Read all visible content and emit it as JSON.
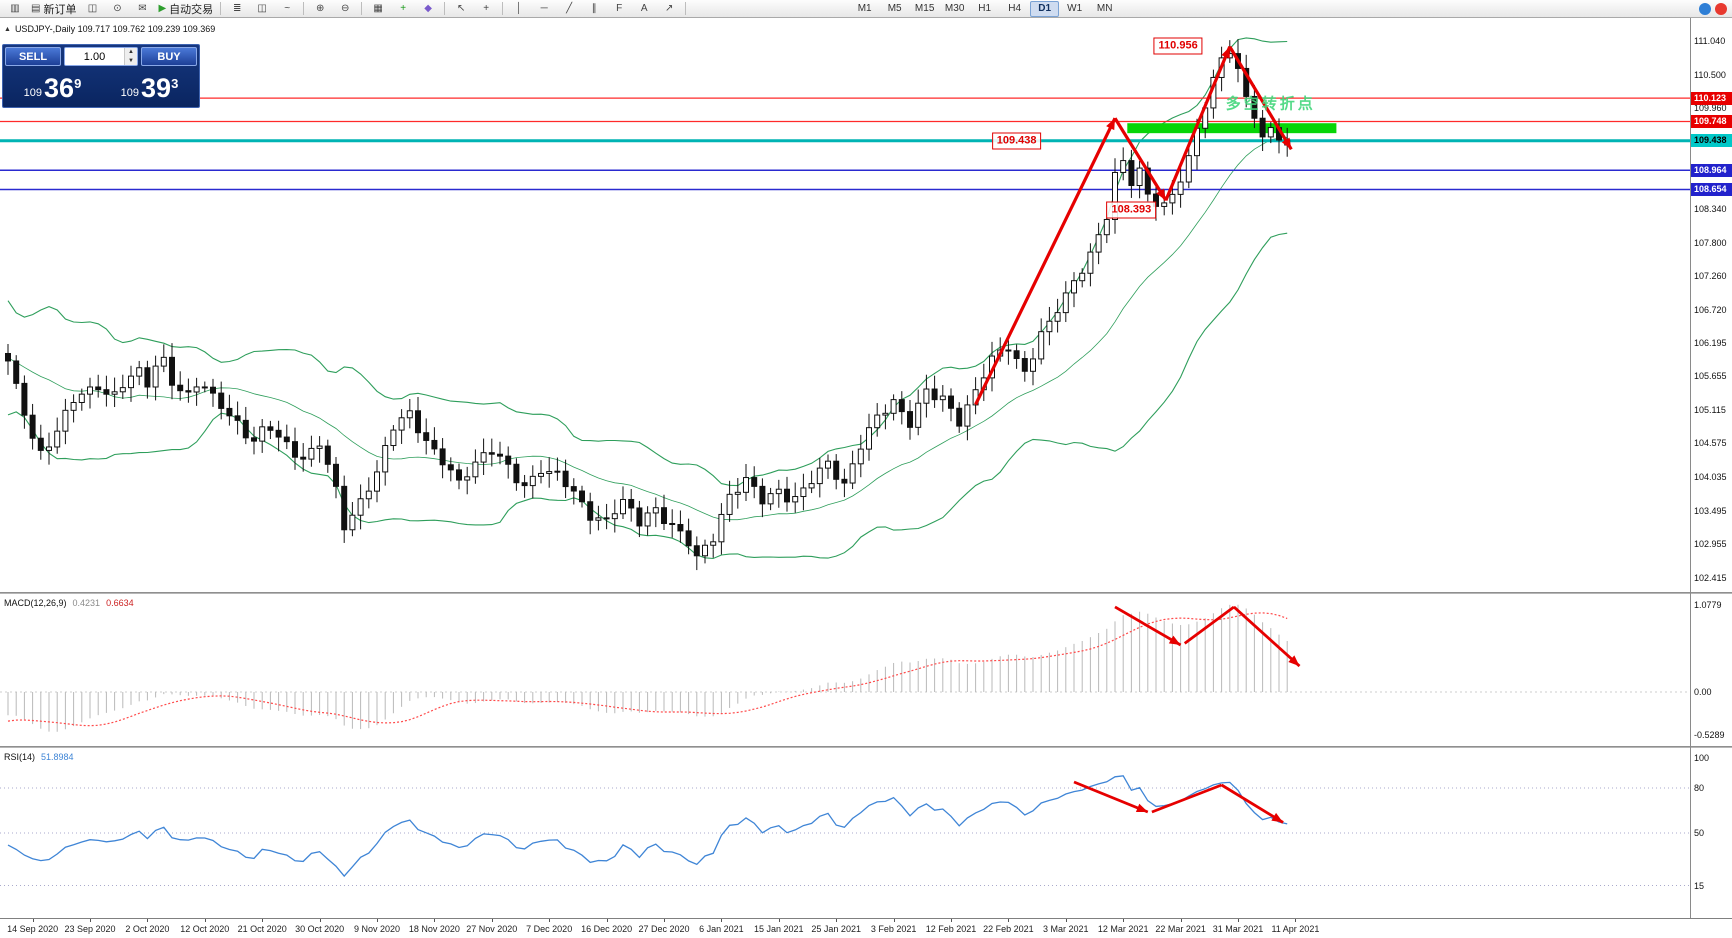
{
  "toolbar": {
    "icons": [
      {
        "name": "new-chart-icon",
        "glyph": "▥"
      },
      {
        "name": "new-order-button",
        "glyph": "▤",
        "label": "新订单"
      },
      {
        "name": "chart-profiles-icon",
        "glyph": "◫"
      },
      {
        "name": "alerts-icon",
        "glyph": "⊙"
      },
      {
        "name": "mail-icon",
        "glyph": "✉"
      },
      {
        "name": "auto-trading-button",
        "glyph": "▶",
        "label": "自动交易",
        "glyph_color": "#2e9e2e"
      },
      {
        "sep": true
      },
      {
        "name": "bar-chart-mode-icon",
        "glyph": "≣"
      },
      {
        "name": "candlestick-mode-icon",
        "glyph": "◫"
      },
      {
        "name": "line-chart-mode-icon",
        "glyph": "~"
      },
      {
        "sep": true
      },
      {
        "name": "zoom-in-icon",
        "glyph": "⊕"
      },
      {
        "name": "zoom-out-icon",
        "glyph": "⊖"
      },
      {
        "sep": true
      },
      {
        "name": "tile-windows-icon",
        "glyph": "▦"
      },
      {
        "name": "indicators-icon",
        "glyph": "+",
        "glyph_color": "#1a9b1a"
      },
      {
        "name": "templates-icon",
        "glyph": "◆",
        "glyph_color": "#7a5acc"
      },
      {
        "sep": true
      },
      {
        "name": "cursor-icon",
        "glyph": "↖"
      },
      {
        "name": "crosshair-icon",
        "glyph": "+"
      },
      {
        "sep": true
      },
      {
        "name": "vertical-line-icon",
        "glyph": "│"
      },
      {
        "name": "horizontal-line-icon",
        "glyph": "─"
      },
      {
        "name": "trendline-icon",
        "glyph": "╱"
      },
      {
        "name": "channel-icon",
        "glyph": "∥"
      },
      {
        "name": "fibonacci-icon",
        "glyph": "F"
      },
      {
        "name": "text-icon",
        "glyph": "A"
      },
      {
        "name": "arrows-tool-icon",
        "glyph": "↗"
      },
      {
        "sep": true
      }
    ],
    "timeframes": [
      "M1",
      "M5",
      "M15",
      "M30",
      "H1",
      "H4",
      "D1",
      "W1",
      "MN"
    ],
    "active_timeframe": "D1",
    "right_icons": [
      {
        "name": "community-icon",
        "color": "#2f7fd6"
      },
      {
        "name": "live-update-icon",
        "color": "#e8392f"
      }
    ]
  },
  "price_panel": {
    "expand_icon": "▲",
    "header": "USDJPY-,Daily  109.717 109.762 109.239 109.369"
  },
  "one_click": {
    "sell_label": "SELL",
    "buy_label": "BUY",
    "volume": "1.00",
    "spin_up": "▲",
    "spin_down": "▼",
    "sell_price_prefix": "109",
    "sell_price_main": "36",
    "sell_price_sup": "9",
    "buy_price_prefix": "109",
    "buy_price_main": "39",
    "buy_price_sup": "3"
  },
  "macd": {
    "name_label": "MACD(12,26,9)",
    "main_value": "0.4231",
    "signal_value": "0.6634",
    "axis": [
      {
        "label": "1.0779",
        "v": 1.0779
      },
      {
        "label": "0.00",
        "v": 0
      },
      {
        "label": "-0.5289",
        "v": -0.5289
      }
    ]
  },
  "rsi": {
    "name_label": "RSI(14)",
    "value": "51.8984",
    "axis": [
      {
        "label": "100",
        "v": 100
      },
      {
        "label": "80",
        "v": 80
      },
      {
        "label": "50",
        "v": 50
      },
      {
        "label": "15",
        "v": 15
      }
    ],
    "levels": [
      80,
      50,
      15
    ]
  },
  "price_axis": {
    "ticks": [
      111.04,
      110.5,
      109.96,
      108.34,
      107.8,
      107.26,
      106.72,
      106.195,
      105.655,
      105.115,
      104.575,
      104.035,
      103.495,
      102.955,
      102.415
    ]
  },
  "time_axis": {
    "labels": [
      "14 Sep 2020",
      "23 Sep 2020",
      "2 Oct 2020",
      "12 Oct 2020",
      "21 Oct 2020",
      "30 Oct 2020",
      "9 Nov 2020",
      "18 Nov 2020",
      "27 Nov 2020",
      "7 Dec 2020",
      "16 Dec 2020",
      "27 Dec 2020",
      "6 Jan 2021",
      "15 Jan 2021",
      "25 Jan 2021",
      "3 Feb 2021",
      "12 Feb 2021",
      "22 Feb 2021",
      "3 Mar 2021",
      "12 Mar 2021",
      "22 Mar 2021",
      "31 Mar 2021",
      "11 Apr 2021"
    ]
  },
  "colors": {
    "arrow_red": "#e60000",
    "bollinger_green": "#2e9e5b",
    "candle": "#111111",
    "zone_green": "#07d507",
    "macd_hist": "#b9b9b9",
    "macd_signal": "#ff4a4a",
    "rsi_line": "#3f85d6",
    "cn_green": "rgba(66,214,123,0.9)",
    "flag_red": "#e00000"
  },
  "chart_data": {
    "type": "candlestick",
    "symbol": "USDJPY",
    "timeframe": "Daily",
    "ohlc_header": {
      "open": 109.717,
      "high": 109.762,
      "low": 109.239,
      "close": 109.369
    },
    "closes": [
      105.85,
      105.45,
      105.1,
      104.7,
      104.45,
      104.6,
      104.75,
      105.0,
      105.25,
      105.35,
      105.45,
      105.55,
      105.4,
      105.35,
      105.5,
      105.6,
      105.7,
      105.55,
      105.85,
      105.95,
      105.6,
      105.4,
      105.3,
      105.5,
      105.45,
      105.35,
      105.25,
      105.05,
      104.9,
      104.7,
      104.55,
      104.75,
      104.85,
      104.7,
      104.6,
      104.45,
      104.3,
      104.4,
      104.55,
      104.2,
      103.85,
      103.3,
      103.45,
      103.65,
      103.85,
      104.05,
      104.45,
      104.85,
      105.0,
      105.1,
      104.85,
      104.6,
      104.4,
      104.25,
      104.1,
      103.95,
      104.15,
      104.3,
      104.4,
      104.45,
      104.3,
      104.15,
      104.0,
      103.9,
      104.05,
      104.2,
      104.1,
      104.05,
      103.9,
      103.75,
      103.6,
      103.45,
      103.4,
      103.35,
      103.5,
      103.6,
      103.45,
      103.3,
      103.45,
      103.55,
      103.4,
      103.25,
      103.1,
      102.95,
      102.7,
      102.9,
      103.1,
      103.45,
      103.75,
      103.85,
      103.95,
      103.8,
      103.65,
      103.75,
      103.85,
      103.75,
      103.7,
      103.8,
      103.95,
      104.1,
      104.25,
      104.1,
      103.95,
      104.25,
      104.55,
      104.75,
      104.95,
      105.1,
      105.25,
      105.1,
      104.95,
      105.2,
      105.4,
      105.3,
      105.25,
      105.1,
      104.95,
      105.2,
      105.45,
      105.7,
      105.9,
      106.0,
      106.1,
      105.9,
      105.75,
      106.05,
      106.35,
      106.5,
      106.7,
      106.9,
      107.15,
      107.4,
      107.65,
      107.95,
      108.25,
      108.85,
      109.05,
      108.75,
      108.95,
      108.6,
      108.5,
      108.42,
      108.55,
      108.8,
      109.1,
      109.6,
      110.05,
      110.45,
      110.8,
      110.92,
      110.6,
      110.15,
      109.8,
      109.5,
      109.65,
      109.45,
      109.37
    ],
    "history_pad": [
      107.3,
      107.0,
      106.6,
      106.2,
      105.9,
      105.6,
      106.2,
      106.5,
      105.9,
      105.5,
      105.2,
      105.8,
      106.1,
      106.4,
      105.9,
      105.4,
      105.1,
      105.7,
      106.0,
      106.1
    ],
    "bollinger": {
      "period": 20,
      "deviation": 2
    },
    "hlines": [
      {
        "price": 110.123,
        "color": "#ff2a2a",
        "width": 1.2,
        "label": "110.123",
        "badge_bg": "#e80000",
        "badge_fg": "#ffffff"
      },
      {
        "price": 109.748,
        "color": "#ff2a2a",
        "width": 1.2,
        "label": "109.748",
        "badge_bg": "#e80000",
        "badge_fg": "#ffffff"
      },
      {
        "price": 109.438,
        "color": "#00b4b4",
        "width": 3,
        "label": "109.438",
        "badge_bg": "#00c8c8",
        "badge_fg": "#000000"
      },
      {
        "price": 108.964,
        "color": "#2a2ad0",
        "width": 1.5,
        "label": "108.964",
        "badge_bg": "#2222cc",
        "badge_fg": "#ffffff"
      },
      {
        "price": 108.654,
        "color": "#2a2ad0",
        "width": 1.5,
        "label": "108.654",
        "badge_bg": "#2222cc",
        "badge_fg": "#ffffff"
      }
    ],
    "green_zone": {
      "day_start": 136.5,
      "day_end": 162,
      "price_top": 109.72,
      "price_bottom": 109.56
    },
    "price_arrows": [
      {
        "from": [
          118,
          105.2
        ],
        "to": [
          135,
          109.8
        ]
      },
      {
        "from": [
          135,
          109.8
        ],
        "to": [
          141.2,
          108.48
        ]
      },
      {
        "from": [
          141.2,
          108.48
        ],
        "to": [
          149,
          110.95
        ]
      },
      {
        "from": [
          149,
          110.95
        ],
        "to": [
          156.5,
          109.3
        ]
      }
    ],
    "macd_arrows": [
      {
        "from": [
          135,
          1.05
        ],
        "to": [
          143,
          0.58
        ]
      },
      {
        "from": [
          143.5,
          0.6
        ],
        "to": [
          149.5,
          1.05
        ],
        "head": false
      },
      {
        "from": [
          149.5,
          1.05
        ],
        "to": [
          157.5,
          0.32
        ]
      }
    ],
    "rsi_arrows": [
      {
        "from": [
          130,
          84
        ],
        "to": [
          139,
          64
        ]
      },
      {
        "from": [
          139.5,
          64
        ],
        "to": [
          148,
          82
        ],
        "head": false
      },
      {
        "from": [
          148,
          82
        ],
        "to": [
          155.5,
          57
        ]
      }
    ],
    "annotations": [
      {
        "name": "peak-price-flag",
        "text": "110.956",
        "day": 142.7,
        "price": 110.96
      },
      {
        "name": "support-price-flag",
        "text": "109.438",
        "day": 123,
        "price": 109.438
      },
      {
        "name": "dip-price-flag",
        "text": "108.393",
        "day": 137,
        "price": 108.33
      }
    ],
    "cn_note": {
      "name": "cn-turning-point-note",
      "text": "多空转折点",
      "day": 154,
      "price": 110.05
    }
  }
}
